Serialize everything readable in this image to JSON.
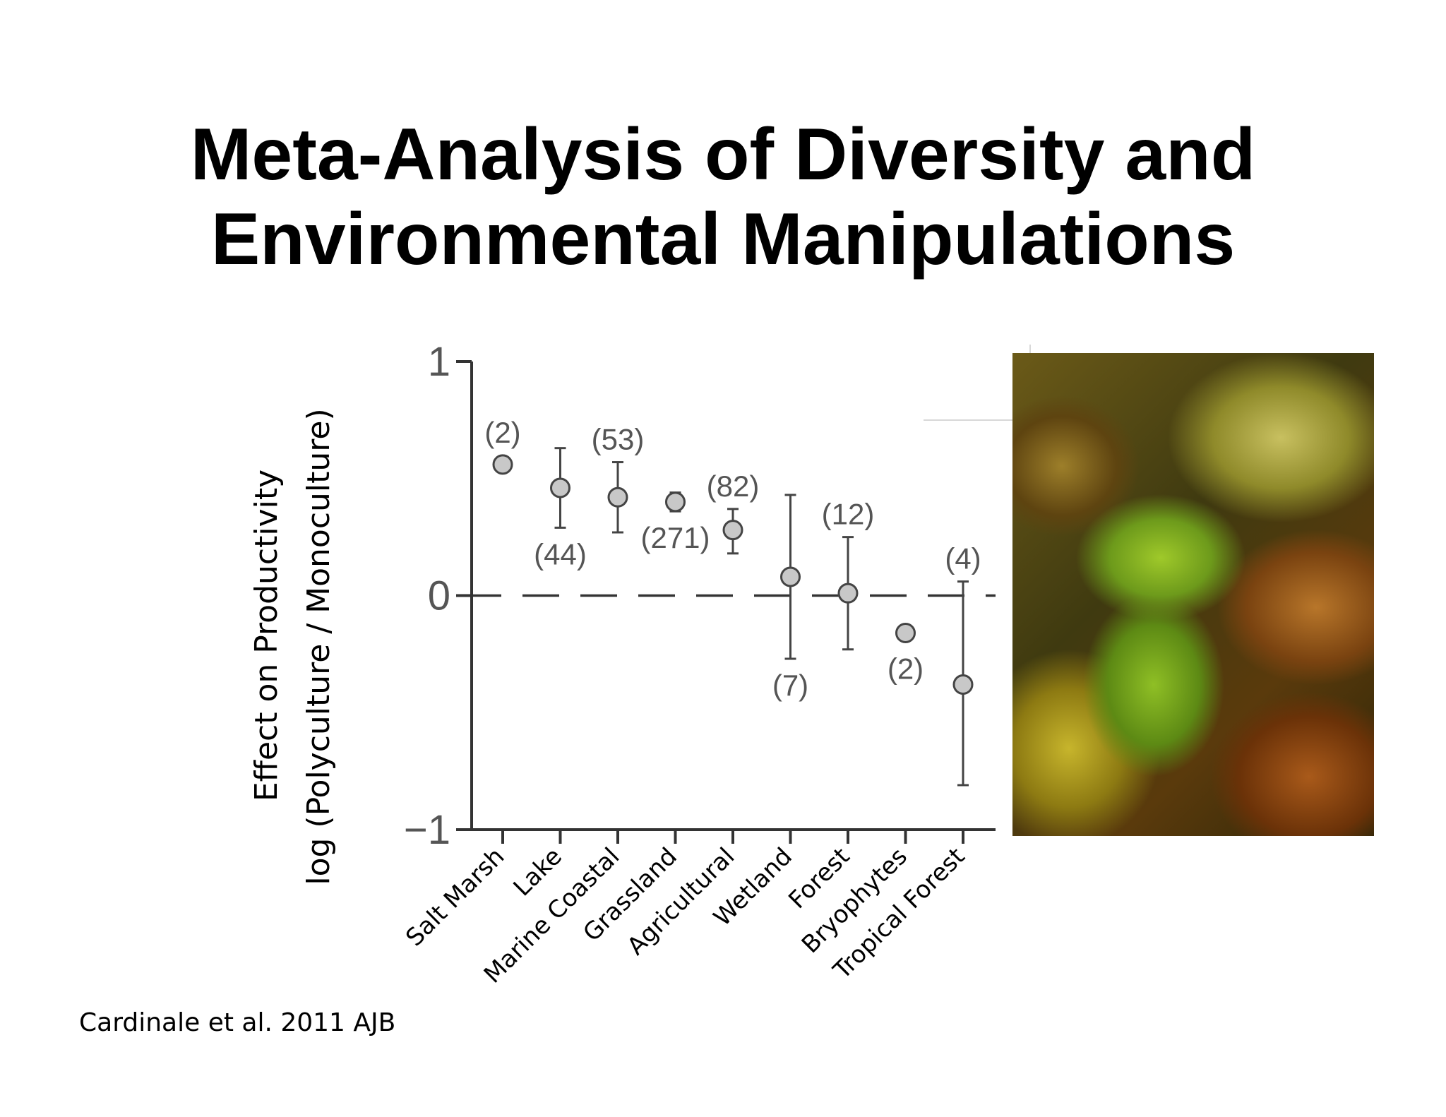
{
  "slide": {
    "title_line1": "Meta-Analysis of Diversity and",
    "title_line2": "Environmental  Manipulations",
    "citation": "Cardinale et al. 2011 AJB"
  },
  "chart_data": {
    "type": "scatter",
    "ylabel_line1": "Effect on Productivity",
    "ylabel_line2": "log (Polyculture / Monoculture)",
    "ylim": [
      -1,
      1
    ],
    "yticks": [
      {
        "value": 1,
        "label": "1"
      },
      {
        "value": 0,
        "label": "0"
      },
      {
        "value": -1,
        "label": "−1"
      }
    ],
    "reference_line": {
      "value": 0,
      "style": "dashed"
    },
    "categories": [
      "Salt Marsh",
      "Lake",
      "Marine Coastal",
      "Grassland",
      "Agricultural",
      "Wetland",
      "Forest",
      "Bryophytes",
      "Tropical Forest"
    ],
    "points": [
      {
        "category": "Salt Marsh",
        "mean": 0.56,
        "lower": null,
        "upper": null,
        "n": "(2)",
        "label_pos": "above"
      },
      {
        "category": "Lake",
        "mean": 0.46,
        "lower": 0.29,
        "upper": 0.63,
        "n": "(44)",
        "label_pos": "below"
      },
      {
        "category": "Marine Coastal",
        "mean": 0.42,
        "lower": 0.27,
        "upper": 0.57,
        "n": "(53)",
        "label_pos": "above"
      },
      {
        "category": "Grassland",
        "mean": 0.4,
        "lower": 0.36,
        "upper": 0.44,
        "n": "(271)",
        "label_pos": "below"
      },
      {
        "category": "Agricultural",
        "mean": 0.28,
        "lower": 0.18,
        "upper": 0.37,
        "n": "(82)",
        "label_pos": "above"
      },
      {
        "category": "Wetland",
        "mean": 0.08,
        "lower": -0.27,
        "upper": 0.43,
        "n": "(7)",
        "label_pos": "below"
      },
      {
        "category": "Forest",
        "mean": 0.01,
        "lower": -0.23,
        "upper": 0.25,
        "n": "(12)",
        "label_pos": "above"
      },
      {
        "category": "Bryophytes",
        "mean": -0.16,
        "lower": null,
        "upper": null,
        "n": "(2)",
        "label_pos": "below"
      },
      {
        "category": "Tropical Forest",
        "mean": -0.38,
        "lower": -0.81,
        "upper": 0.06,
        "n": "(4)",
        "label_pos": "above"
      }
    ],
    "colors": {
      "axis": "#333333",
      "marker_fill": "#c8c8c8",
      "marker_stroke": "#444444",
      "tick_label": "#555555",
      "category_label": "#000000"
    }
  },
  "photo": {
    "icon": "seaweed-photo"
  }
}
